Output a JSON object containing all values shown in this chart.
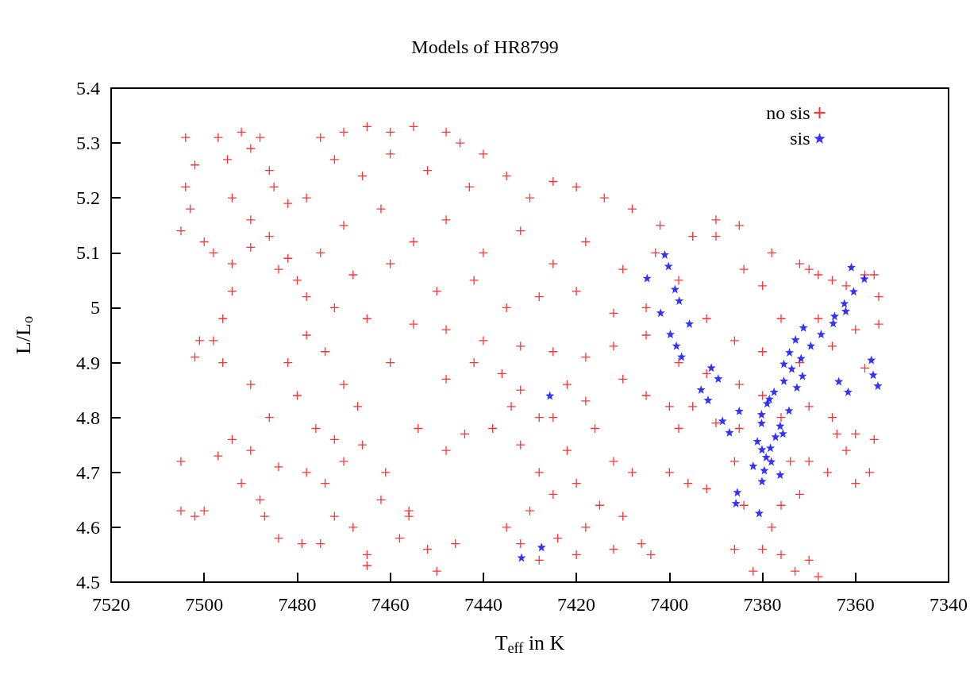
{
  "chart_data": {
    "type": "scatter",
    "title": "Models of HR8799",
    "xlabel": "T$_{eff}$ in K",
    "ylabel": "L/L$_{o}$",
    "xlim": [
      7520,
      7340
    ],
    "xticks": [
      7520,
      7500,
      7480,
      7460,
      7440,
      7420,
      7400,
      7380,
      7360,
      7340
    ],
    "ylim": [
      4.5,
      5.4
    ],
    "yticks": [
      4.5,
      4.6,
      4.7,
      4.8,
      4.9,
      5,
      5.1,
      5.2,
      5.3,
      5.4
    ],
    "grid": false,
    "legend": "top right",
    "series": [
      {
        "name": "no sis",
        "color": "#ff0000",
        "marker": "cross",
        "x": [
          7504,
          7502,
          7504,
          7503,
          7505,
          7500,
          7497,
          7495,
          7492,
          7490,
          7488,
          7486,
          7494,
          7490,
          7486,
          7482,
          7498,
          7494,
          7490,
          7484,
          7480,
          7485,
          7482,
          7475,
          7470,
          7465,
          7460,
          7455,
          7448,
          7445,
          7440,
          7472,
          7466,
          7460,
          7452,
          7443,
          7435,
          7430,
          7425,
          7420,
          7414,
          7408,
          7402,
          7395,
          7390,
          7385,
          7378,
          7370,
          7365,
          7358,
          7355,
          7355,
          7478,
          7470,
          7462,
          7455,
          7448,
          7440,
          7432,
          7425,
          7418,
          7410,
          7403,
          7398,
          7475,
          7468,
          7460,
          7450,
          7442,
          7435,
          7428,
          7420,
          7412,
          7405,
          7478,
          7472,
          7465,
          7455,
          7448,
          7440,
          7432,
          7425,
          7418,
          7412,
          7405,
          7398,
          7392,
          7385,
          7380,
          7410,
          7405,
          7400,
          7395,
          7390,
          7385,
          7376,
          7370,
          7365,
          7360,
          7356,
          7372,
          7365,
          7360,
          7358,
          7490,
          7486,
          7490,
          7484,
          7478,
          7474,
          7470,
          7476,
          7480,
          7482,
          7478,
          7474,
          7470,
          7467,
          7472,
          7466,
          7487,
          7484,
          7479,
          7475,
          7472,
          7468,
          7465,
          7465,
          7462,
          7458,
          7456,
          7461,
          7494,
          7492,
          7488,
          7505,
          7505,
          7502,
          7500,
          7497,
          7501,
          7502,
          7498,
          7496,
          7494,
          7496,
          7454,
          7448,
          7444,
          7456,
          7452,
          7446,
          7450,
          7460,
          7448,
          7442,
          7436,
          7434,
          7438,
          7432,
          7428,
          7432,
          7428,
          7425,
          7430,
          7435,
          7432,
          7428,
          7424,
          7420,
          7418,
          7415,
          7420,
          7422,
          7425,
          7422,
          7418,
          7416,
          7412,
          7410,
          7406,
          7412,
          7404,
          7408,
          7398,
          7400,
          7396,
          7386,
          7384,
          7386,
          7382,
          7380,
          7378,
          7376,
          7373,
          7370,
          7368,
          7376,
          7372,
          7370,
          7366,
          7362,
          7360,
          7357,
          7364,
          7392,
          7374,
          7390,
          7384,
          7380,
          7372,
          7368,
          7376,
          7368,
          7392,
          7386,
          7380,
          7362,
          7356
        ],
        "values": [
          5.31,
          5.26,
          5.22,
          5.18,
          5.14,
          5.12,
          5.31,
          5.27,
          5.32,
          5.29,
          5.31,
          5.25,
          5.2,
          5.16,
          5.13,
          5.09,
          5.1,
          5.08,
          5.11,
          5.07,
          5.05,
          5.22,
          5.19,
          5.31,
          5.32,
          5.33,
          5.32,
          5.33,
          5.32,
          5.3,
          5.28,
          5.27,
          5.24,
          5.28,
          5.25,
          5.22,
          5.24,
          5.2,
          5.23,
          5.22,
          5.2,
          5.18,
          5.15,
          5.13,
          5.16,
          5.15,
          5.1,
          5.07,
          5.05,
          5.06,
          5.02,
          4.97,
          5.2,
          5.15,
          5.18,
          5.12,
          5.16,
          5.1,
          5.14,
          5.08,
          5.12,
          5.07,
          5.1,
          5.05,
          5.1,
          5.06,
          5.08,
          5.03,
          5.05,
          5,
          5.02,
          5.03,
          4.99,
          5,
          5.02,
          5,
          4.98,
          4.97,
          4.96,
          4.94,
          4.93,
          4.92,
          4.91,
          4.93,
          4.95,
          4.9,
          4.88,
          4.86,
          4.84,
          4.87,
          4.84,
          4.82,
          4.82,
          4.79,
          4.78,
          4.8,
          4.82,
          4.8,
          4.77,
          4.76,
          4.9,
          4.93,
          4.96,
          4.89,
          4.86,
          4.8,
          4.74,
          4.71,
          4.7,
          4.68,
          4.72,
          4.78,
          4.84,
          4.9,
          4.95,
          4.92,
          4.86,
          4.82,
          4.76,
          4.75,
          4.62,
          4.58,
          4.57,
          4.57,
          4.62,
          4.6,
          4.55,
          4.53,
          4.65,
          4.58,
          4.63,
          4.7,
          4.76,
          4.68,
          4.65,
          4.72,
          4.63,
          4.62,
          4.63,
          4.73,
          4.94,
          4.91,
          4.94,
          4.9,
          5.03,
          4.98,
          4.78,
          4.74,
          4.77,
          4.62,
          4.56,
          4.57,
          4.52,
          4.9,
          4.87,
          4.9,
          4.88,
          4.82,
          4.78,
          4.85,
          4.8,
          4.75,
          4.7,
          4.66,
          4.63,
          4.6,
          4.57,
          4.54,
          4.58,
          4.55,
          4.6,
          4.64,
          4.68,
          4.74,
          4.8,
          4.86,
          4.83,
          4.78,
          4.72,
          4.62,
          4.57,
          4.56,
          4.55,
          4.7,
          4.78,
          4.7,
          4.68,
          4.72,
          4.64,
          4.56,
          4.52,
          4.56,
          4.6,
          4.55,
          4.52,
          4.54,
          4.51,
          4.64,
          4.66,
          4.72,
          4.7,
          4.74,
          4.68,
          4.7,
          4.77,
          4.67,
          4.72,
          5.13,
          5.07,
          5.04,
          5.08,
          5.06,
          4.98,
          4.98,
          4.98,
          4.94,
          4.92,
          5.04,
          5.06
        ]
      },
      {
        "name": "sis",
        "color": "#0000ff",
        "marker": "star",
        "x": [
          7401,
          7400.2,
          7404.8,
          7398.8,
          7397.9,
          7401.9,
          7395.7,
          7399.8,
          7398.5,
          7397.4,
          7391,
          7389.5,
          7393.2,
          7391.7,
          7385,
          7388.6,
          7387.1,
          7380.2,
          7380.2,
          7381.1,
          7379,
          7378.5,
          7377.5,
          7375.4,
          7372.6,
          7371.4,
          7374.3,
          7376.2,
          7375.6,
          7377.2,
          7378.3,
          7380.1,
          7379.2,
          7378.1,
          7382,
          7379.6,
          7380.1,
          7376.2,
          7385.4,
          7385.7,
          7380.7,
          7375.4,
          7373.7,
          7371.7,
          7374.2,
          7372.9,
          7371.2,
          7369.6,
          7367.4,
          7364.8,
          7364.5,
          7362.4,
          7362.1,
          7360.9,
          7358.1,
          7360.4,
          7363.6,
          7361.6,
          7356.6,
          7356.2,
          7355.2,
          7425.7,
          7431.8,
          7427.5
        ],
        "values": [
          5.097,
          5.076,
          5.054,
          5.034,
          5.013,
          4.991,
          4.971,
          4.952,
          4.931,
          4.911,
          4.891,
          4.871,
          4.851,
          4.832,
          4.812,
          4.794,
          4.773,
          4.806,
          4.79,
          4.757,
          4.826,
          4.834,
          4.847,
          4.867,
          4.855,
          4.876,
          4.813,
          4.785,
          4.771,
          4.765,
          4.745,
          4.742,
          4.728,
          4.72,
          4.712,
          4.704,
          4.684,
          4.696,
          4.664,
          4.644,
          4.626,
          4.898,
          4.889,
          4.908,
          4.919,
          4.942,
          4.964,
          4.931,
          4.952,
          4.972,
          4.985,
          5.008,
          4.994,
          5.074,
          5.053,
          5.03,
          4.866,
          4.847,
          4.905,
          4.878,
          4.858,
          4.84,
          4.545,
          4.564
        ]
      }
    ]
  }
}
